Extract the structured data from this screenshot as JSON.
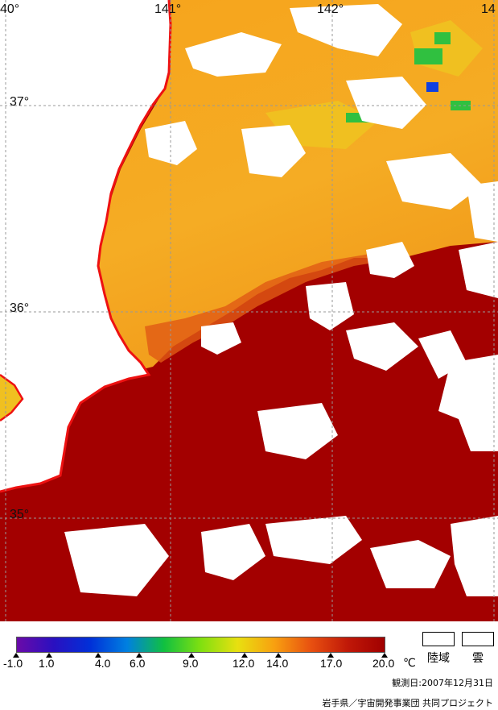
{
  "map": {
    "lon_labels": [
      "40°",
      "141°",
      "142°",
      "14"
    ],
    "lat_labels": [
      "37°",
      "36°",
      "35°"
    ],
    "colors": {
      "land": "#ffffff",
      "cloud": "#ffffff",
      "coastline": "#ee1111",
      "grid": "#999999",
      "warm_water": "#a30000",
      "cool_water": "#f8a81e"
    }
  },
  "legend": {
    "ticks": [
      "-1.0",
      "1.0",
      "4.0",
      "6.0",
      "9.0",
      "12.0",
      "14.0",
      "17.0",
      "20.0"
    ],
    "unit": "℃",
    "land_label": "陸域",
    "cloud_label": "雲",
    "gradient_colors": [
      "#6a0aa8",
      "#2a10c0",
      "#0030d8",
      "#0080e0",
      "#10c040",
      "#80e010",
      "#e8e010",
      "#f8a010",
      "#e85010",
      "#c01808",
      "#a00000"
    ]
  },
  "footer": {
    "observation_date": "観測日:2007年12月31日",
    "credit": "岩手県／宇宙開発事業団 共同プロジェクト"
  }
}
